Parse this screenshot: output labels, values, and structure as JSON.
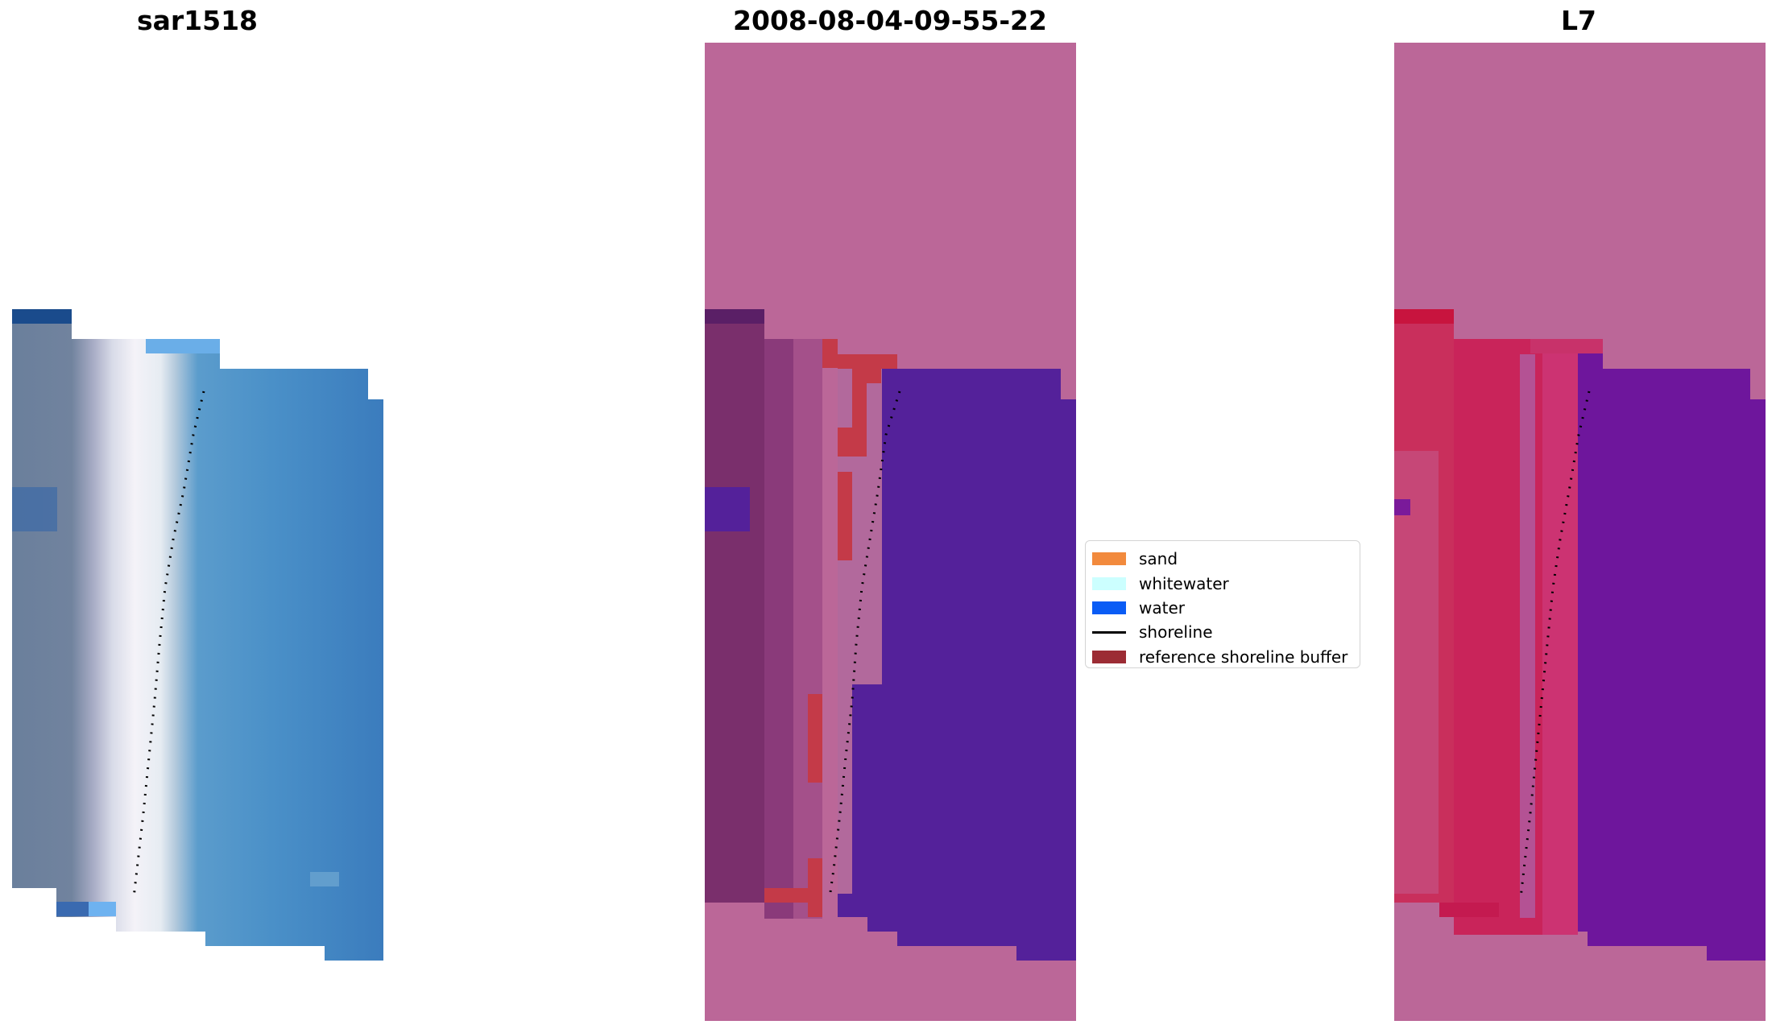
{
  "panels": [
    {
      "title": "sar1518"
    },
    {
      "title": "2008-08-04-09-55-22"
    },
    {
      "title": "L7"
    }
  ],
  "legend": [
    {
      "label": "sand",
      "color": "#f28a3d",
      "kind": "patch"
    },
    {
      "label": "whitewater",
      "color": "#ccffff",
      "kind": "patch"
    },
    {
      "label": "water",
      "color": "#0a5cf5",
      "kind": "patch"
    },
    {
      "label": "shoreline",
      "color": "#000000",
      "kind": "line"
    },
    {
      "label": "reference shoreline buffer",
      "color": "#9c2c34",
      "kind": "patch"
    }
  ]
}
